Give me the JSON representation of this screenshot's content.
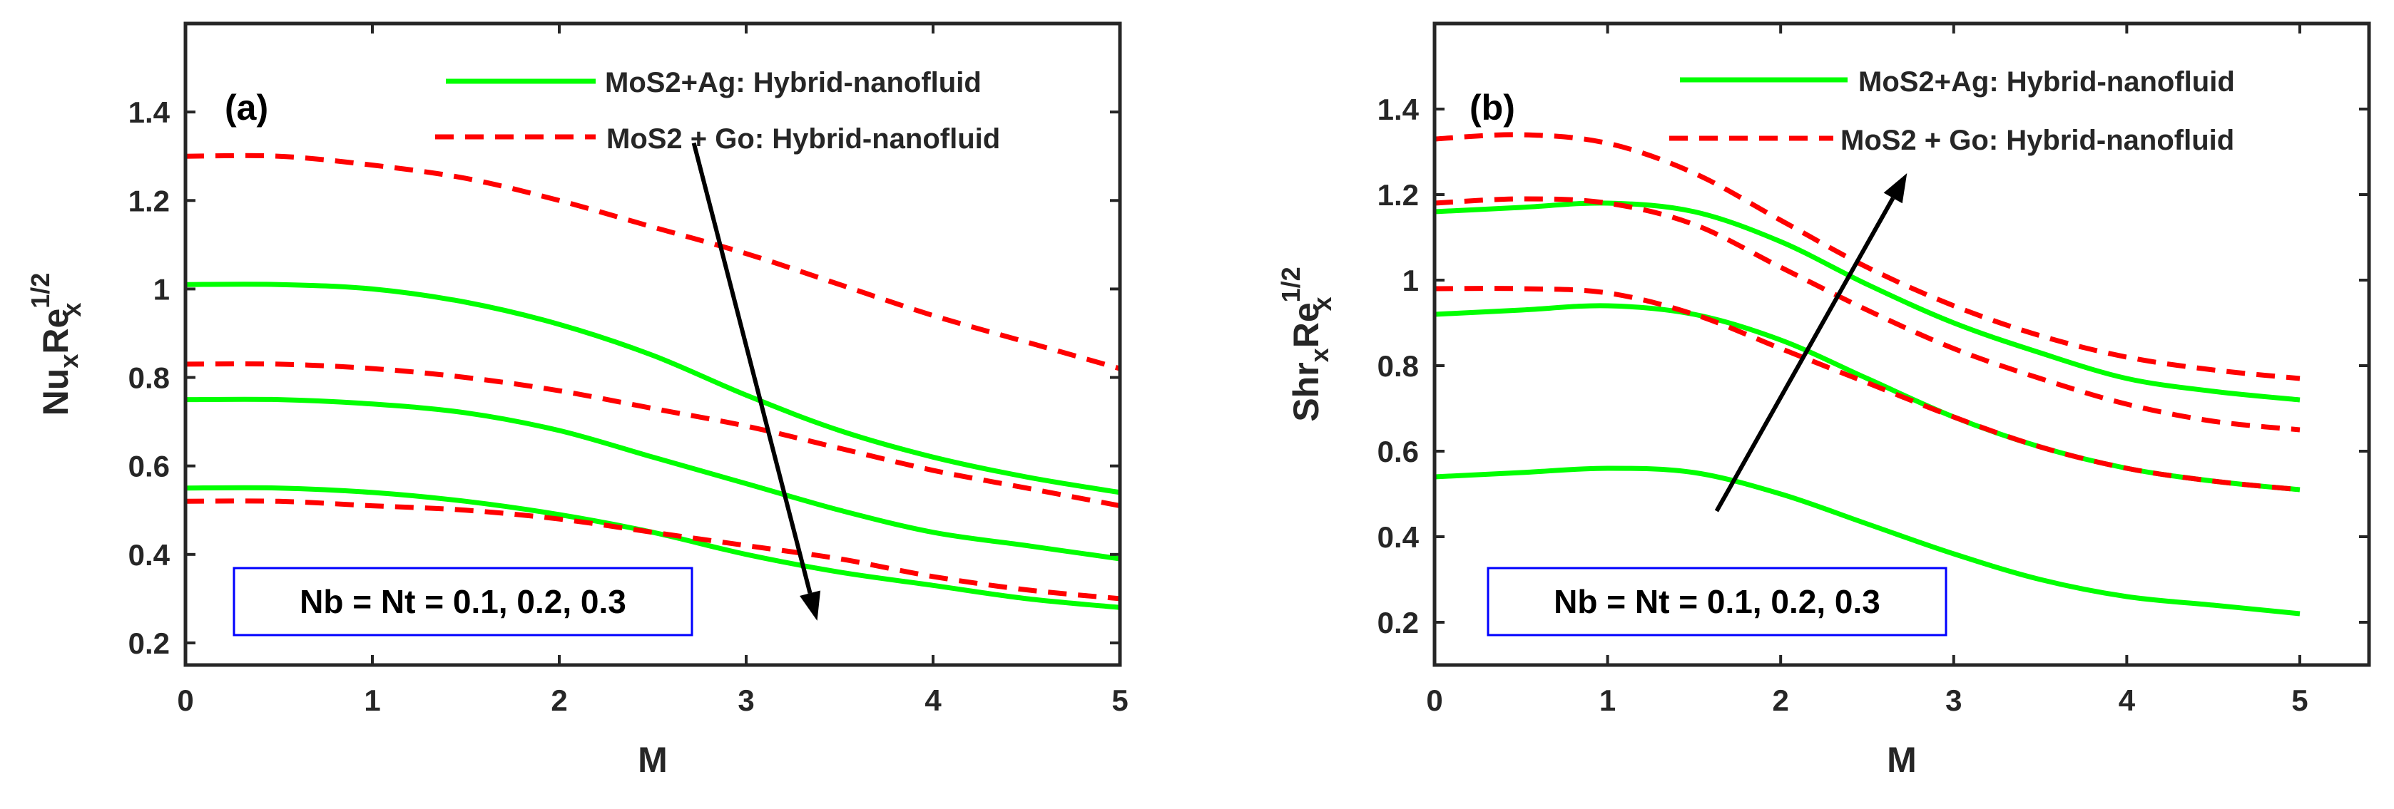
{
  "chart_data": [
    {
      "type": "line",
      "panel_label": "(a)",
      "xlabel": "M",
      "ylabel": {
        "base": "Nu",
        "sub1": "x",
        "mid": "Re",
        "sup": "1/2",
        "sub2": "x"
      },
      "xlim": [
        0,
        5
      ],
      "ylim": [
        0.15,
        1.6
      ],
      "xticks": [
        0,
        1,
        2,
        3,
        4,
        5
      ],
      "yticks": [
        0.2,
        0.4,
        0.6,
        0.8,
        1,
        1.2,
        1.4
      ],
      "xtick_labels": [
        "0",
        "1",
        "2",
        "3",
        "4",
        "5"
      ],
      "ytick_labels": [
        "0.2",
        "0.4",
        "0.6",
        "0.8",
        "1",
        "1.2",
        "1.4"
      ],
      "grid": false,
      "legend_position": "top-right",
      "legend": [
        {
          "label": "MoS2+Ag: Hybrid-nanofluid",
          "style": "solid",
          "color": "#00ff00"
        },
        {
          "label": "MoS2 + Go: Hybrid-nanofluid",
          "style": "dashed",
          "color": "#ff0000"
        }
      ],
      "annotation": "Nb = Nt = 0.1, 0.2, 0.3",
      "arrow": {
        "from": [
          2.72,
          1.33
        ],
        "to": [
          3.38,
          0.25
        ]
      },
      "series": [
        {
          "style": "solid",
          "color": "#00ff00",
          "x": [
            0,
            0.5,
            1,
            1.5,
            2,
            2.5,
            3,
            3.5,
            4,
            4.5,
            5
          ],
          "y": [
            1.01,
            1.01,
            1.0,
            0.97,
            0.92,
            0.85,
            0.76,
            0.68,
            0.62,
            0.575,
            0.54
          ]
        },
        {
          "style": "solid",
          "color": "#00ff00",
          "x": [
            0,
            0.5,
            1,
            1.5,
            2,
            2.5,
            3,
            3.5,
            4,
            4.5,
            5
          ],
          "y": [
            0.75,
            0.75,
            0.74,
            0.72,
            0.68,
            0.62,
            0.56,
            0.5,
            0.45,
            0.42,
            0.39
          ]
        },
        {
          "style": "solid",
          "color": "#00ff00",
          "x": [
            0,
            0.5,
            1,
            1.5,
            2,
            2.5,
            3,
            3.5,
            4,
            4.5,
            5
          ],
          "y": [
            0.55,
            0.55,
            0.54,
            0.52,
            0.49,
            0.45,
            0.4,
            0.36,
            0.33,
            0.3,
            0.28
          ]
        },
        {
          "style": "dashed",
          "color": "#ff0000",
          "x": [
            0,
            0.5,
            1,
            1.5,
            2,
            2.5,
            3,
            3.5,
            4,
            4.5,
            5
          ],
          "y": [
            1.3,
            1.3,
            1.28,
            1.25,
            1.2,
            1.14,
            1.08,
            1.01,
            0.94,
            0.88,
            0.82
          ]
        },
        {
          "style": "dashed",
          "color": "#ff0000",
          "x": [
            0,
            0.5,
            1,
            1.5,
            2,
            2.5,
            3,
            3.5,
            4,
            4.5,
            5
          ],
          "y": [
            0.83,
            0.83,
            0.82,
            0.8,
            0.77,
            0.73,
            0.69,
            0.64,
            0.59,
            0.55,
            0.51
          ]
        },
        {
          "style": "dashed",
          "color": "#ff0000",
          "x": [
            0,
            0.5,
            1,
            1.5,
            2,
            2.5,
            3,
            3.5,
            4,
            4.5,
            5
          ],
          "y": [
            0.52,
            0.52,
            0.51,
            0.5,
            0.48,
            0.45,
            0.42,
            0.39,
            0.35,
            0.32,
            0.3
          ]
        }
      ]
    },
    {
      "type": "line",
      "panel_label": "(b)",
      "xlabel": "M",
      "ylabel": {
        "base": "Shr",
        "sub1": "x",
        "mid": "Re",
        "sup": "1/2",
        "sub2": "x"
      },
      "xlim": [
        0,
        5.4
      ],
      "ylim": [
        0.1,
        1.6
      ],
      "xticks": [
        0,
        1,
        2,
        3,
        4,
        5
      ],
      "yticks": [
        0.2,
        0.4,
        0.6,
        0.8,
        1,
        1.2,
        1.4
      ],
      "xtick_labels": [
        "0",
        "1",
        "2",
        "3",
        "4",
        "5"
      ],
      "ytick_labels": [
        "0.2",
        "0.4",
        "0.6",
        "0.8",
        "1",
        "1.2",
        "1.4"
      ],
      "grid": false,
      "legend_position": "top-right",
      "legend": [
        {
          "label": "MoS2+Ag: Hybrid-nanofluid",
          "style": "solid",
          "color": "#00ff00"
        },
        {
          "label": "MoS2 + Go: Hybrid-nanofluid",
          "style": "dashed",
          "color": "#ff0000"
        }
      ],
      "annotation": "Nb = Nt = 0.1, 0.2, 0.3",
      "arrow": {
        "from": [
          1.63,
          0.46
        ],
        "to": [
          2.73,
          1.25
        ]
      },
      "series": [
        {
          "style": "solid",
          "color": "#00ff00",
          "x": [
            0,
            0.5,
            1,
            1.5,
            2,
            2.5,
            3,
            3.5,
            4,
            4.5,
            5
          ],
          "y": [
            1.16,
            1.17,
            1.18,
            1.16,
            1.09,
            0.99,
            0.9,
            0.83,
            0.77,
            0.74,
            0.72
          ]
        },
        {
          "style": "solid",
          "color": "#00ff00",
          "x": [
            0,
            0.5,
            1,
            1.5,
            2,
            2.5,
            3,
            3.5,
            4,
            4.5,
            5
          ],
          "y": [
            0.92,
            0.93,
            0.94,
            0.92,
            0.86,
            0.77,
            0.68,
            0.61,
            0.56,
            0.53,
            0.51
          ]
        },
        {
          "style": "solid",
          "color": "#00ff00",
          "x": [
            0,
            0.5,
            1,
            1.5,
            2,
            2.5,
            3,
            3.5,
            4,
            4.5,
            5
          ],
          "y": [
            0.54,
            0.55,
            0.56,
            0.55,
            0.5,
            0.43,
            0.36,
            0.3,
            0.26,
            0.24,
            0.22
          ]
        },
        {
          "style": "dashed",
          "color": "#ff0000",
          "x": [
            0,
            0.5,
            1,
            1.5,
            2,
            2.5,
            3,
            3.5,
            4,
            4.5,
            5
          ],
          "y": [
            1.33,
            1.34,
            1.32,
            1.25,
            1.14,
            1.03,
            0.94,
            0.87,
            0.82,
            0.79,
            0.77
          ]
        },
        {
          "style": "dashed",
          "color": "#ff0000",
          "x": [
            0,
            0.5,
            1,
            1.5,
            2,
            2.5,
            3,
            3.5,
            4,
            4.5,
            5
          ],
          "y": [
            1.18,
            1.19,
            1.18,
            1.13,
            1.03,
            0.93,
            0.84,
            0.77,
            0.71,
            0.67,
            0.65
          ]
        },
        {
          "style": "dashed",
          "color": "#ff0000",
          "x": [
            0,
            0.5,
            1,
            1.5,
            2,
            2.5,
            3,
            3.5,
            4,
            4.5,
            5
          ],
          "y": [
            0.98,
            0.98,
            0.97,
            0.92,
            0.84,
            0.76,
            0.68,
            0.61,
            0.56,
            0.53,
            0.51
          ]
        }
      ]
    }
  ]
}
